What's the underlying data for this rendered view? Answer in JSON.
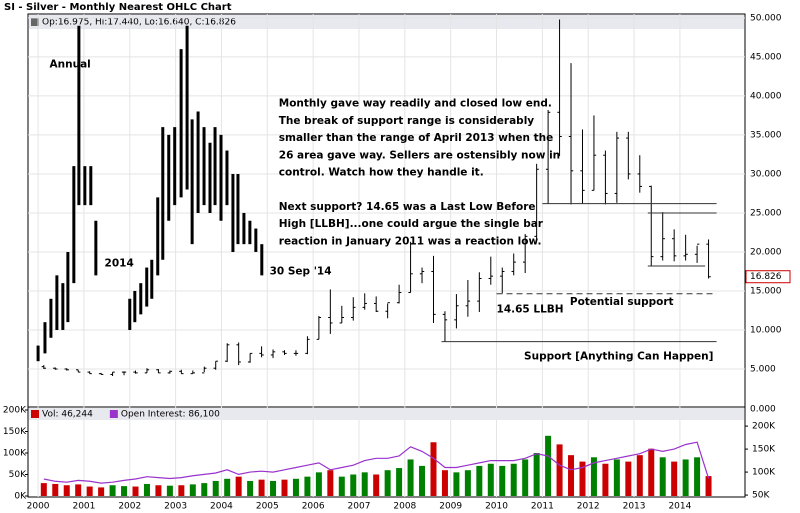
{
  "chart_data": [
    {
      "type": "ohlc",
      "title": "SI - Silver - Monthly Nearest OHLC Chart",
      "legend_text": "Op:16.975, Hi:17.440, Lo:16.640, C:16.826",
      "x": [
        2000.125,
        2000.375,
        2000.625,
        2000.875,
        2001.125,
        2001.375,
        2001.625,
        2001.875,
        2002.125,
        2002.375,
        2002.625,
        2002.875,
        2003.125,
        2003.375,
        2003.625,
        2003.875,
        2004.125,
        2004.375,
        2004.625,
        2004.875,
        2005.125,
        2005.375,
        2005.625,
        2005.875,
        2006.125,
        2006.375,
        2006.625,
        2006.875,
        2007.125,
        2007.375,
        2007.625,
        2007.875,
        2008.125,
        2008.375,
        2008.625,
        2008.875,
        2009.125,
        2009.375,
        2009.625,
        2009.875,
        2010.125,
        2010.375,
        2010.625,
        2010.875,
        2011.125,
        2011.375,
        2011.625,
        2011.875,
        2012.125,
        2012.375,
        2012.625,
        2012.875,
        2013.125,
        2013.375,
        2013.625,
        2013.875,
        2014.125,
        2014.375,
        2014.625
      ],
      "ohlc": {
        "open": [
          5.3,
          5.1,
          5.0,
          4.9,
          4.6,
          4.4,
          4.3,
          4.6,
          4.6,
          4.5,
          4.9,
          4.5,
          4.7,
          4.4,
          4.5,
          5.1,
          6.0,
          8.1,
          5.9,
          7.0,
          6.8,
          7.2,
          7.0,
          7.0,
          8.8,
          11.6,
          10.9,
          11.6,
          12.9,
          13.4,
          12.4,
          13.5,
          14.8,
          17.2,
          17.5,
          12.0,
          11.3,
          13.1,
          13.7,
          16.6,
          16.9,
          17.5,
          18.7,
          22.0,
          30.6,
          37.9,
          34.8,
          30.4,
          27.9,
          32.4,
          27.5,
          34.6,
          30.0,
          28.4,
          19.4,
          21.7,
          19.5,
          19.7,
          21.0
        ],
        "high": [
          5.5,
          5.2,
          5.1,
          4.9,
          4.7,
          4.5,
          4.6,
          4.7,
          4.8,
          5.1,
          5.0,
          4.8,
          4.9,
          4.8,
          5.3,
          6.0,
          8.3,
          8.4,
          7.0,
          7.9,
          7.5,
          7.4,
          7.4,
          9.2,
          11.8,
          15.2,
          13.1,
          14.2,
          14.7,
          14.3,
          13.4,
          15.8,
          21.3,
          18.0,
          19.5,
          12.4,
          14.6,
          16.4,
          17.4,
          19.4,
          18.0,
          19.8,
          22.3,
          31.3,
          38.2,
          49.8,
          44.2,
          35.7,
          37.5,
          33.0,
          35.4,
          35.4,
          32.4,
          28.5,
          25.1,
          22.9,
          22.2,
          20.8,
          21.6
        ],
        "low": [
          5.0,
          4.9,
          4.8,
          4.6,
          4.4,
          4.3,
          4.1,
          4.2,
          4.4,
          4.5,
          4.5,
          4.4,
          4.4,
          4.4,
          4.6,
          4.9,
          5.9,
          5.5,
          5.8,
          6.5,
          6.4,
          6.8,
          6.7,
          6.9,
          8.8,
          9.5,
          10.9,
          11.2,
          12.6,
          12.3,
          11.5,
          13.4,
          14.8,
          16.0,
          10.9,
          8.5,
          10.2,
          11.7,
          12.3,
          15.8,
          14.7,
          17.0,
          17.3,
          21.6,
          26.2,
          32.3,
          26.1,
          26.2,
          27.9,
          26.1,
          26.3,
          29.3,
          27.6,
          18.2,
          18.9,
          18.8,
          18.9,
          18.6,
          16.6
        ],
        "close": [
          5.1,
          5.0,
          4.9,
          4.6,
          4.4,
          4.3,
          4.6,
          4.6,
          4.5,
          4.9,
          4.5,
          4.7,
          4.4,
          4.5,
          5.1,
          6.0,
          8.1,
          5.9,
          7.0,
          6.8,
          7.2,
          7.0,
          7.0,
          8.8,
          11.6,
          10.9,
          11.6,
          12.9,
          13.4,
          12.4,
          13.5,
          14.8,
          17.2,
          17.5,
          12.0,
          11.3,
          13.1,
          13.7,
          16.6,
          16.9,
          17.5,
          18.7,
          22.0,
          30.6,
          37.9,
          34.8,
          30.4,
          27.9,
          32.4,
          27.5,
          34.6,
          30.0,
          28.4,
          19.4,
          21.7,
          19.5,
          19.7,
          21.0,
          16.826
        ]
      },
      "overlay_bars": {
        "x": [
          2000.0,
          2000.15,
          2000.28,
          2000.41,
          2000.54,
          2000.65,
          2000.78,
          2000.89,
          2001.02,
          2001.15,
          2001.26,
          2002.0,
          2002.11,
          2002.24,
          2002.37,
          2002.48,
          2002.61,
          2002.72,
          2002.85,
          2002.98,
          2003.12,
          2003.25,
          2003.36,
          2003.49,
          2003.62,
          2003.75,
          2003.86,
          2003.99,
          2004.12,
          2004.25,
          2004.36,
          2004.49,
          2004.62,
          2004.75,
          2004.88
        ],
        "high": [
          8,
          11,
          14,
          17,
          16,
          20,
          31,
          49,
          31,
          31,
          24,
          14,
          15,
          16,
          18,
          19,
          27,
          36,
          35,
          36,
          46,
          49,
          37,
          38,
          36,
          34,
          36,
          35,
          33,
          30,
          30,
          25,
          24,
          23,
          21
        ],
        "low": [
          6,
          7,
          9,
          10,
          10,
          11,
          16,
          26,
          26,
          26,
          17,
          10,
          11,
          12,
          13,
          14,
          17,
          19,
          24,
          26,
          27,
          28,
          21,
          25,
          26,
          25,
          26,
          24,
          26,
          20,
          21,
          21,
          21,
          20,
          17
        ]
      },
      "lines": [
        {
          "y": 26.2,
          "x": [
            2011.0,
            2014.8
          ],
          "dashed": false
        },
        {
          "y": 25,
          "x": [
            2013.3,
            2014.8
          ],
          "dashed": false
        },
        {
          "y": 18.2,
          "x": [
            2013.3,
            2014.55
          ],
          "dashed": false
        },
        {
          "y": 14.65,
          "x": [
            2010.0,
            2014.8
          ],
          "dashed": true
        },
        {
          "y": 8.5,
          "x": [
            2008.8,
            2014.8
          ],
          "dashed": false
        }
      ],
      "annotations": [
        {
          "text": "Annual",
          "x": 2000.25,
          "y": 44
        },
        {
          "text": "2014",
          "x": 2001.45,
          "y": 18.5
        },
        {
          "text": "30 Sep '14",
          "x": 2005.05,
          "y": 17.5
        },
        {
          "text": "14.65 LLBH",
          "x": 2010.0,
          "y": 12.6
        },
        {
          "text": "Potential support",
          "x": 2011.6,
          "y": 13.6
        },
        {
          "text": "Support  [Anything Can Happen]",
          "x": 2010.6,
          "y": 6.6
        }
      ],
      "note": {
        "x": 2005.25,
        "y": 39,
        "lines": [
          "Monthly gave way readily and closed low end.",
          "The break of support range is considerably",
          "smaller than the range of April 2013 when the",
          "26 area gave way.  Sellers are ostensibly now in",
          "control.  Watch how they handle it.",
          "",
          "Next support?  14.65 was a Last Low Before",
          "High [LLBH]...one could argue the single bar",
          "reaction in January 2011 was a reaction low."
        ]
      },
      "xlim": [
        1999.78,
        2015.42
      ],
      "xticks": [
        2000,
        2001,
        2002,
        2003,
        2004,
        2005,
        2006,
        2007,
        2008,
        2009,
        2010,
        2011,
        2012,
        2013,
        2014
      ],
      "ylim": [
        0,
        50.5
      ],
      "yticks": [
        {
          "value": 5,
          "label": "5.000"
        },
        {
          "value": 10,
          "label": "10.000"
        },
        {
          "value": 15,
          "label": "15.000"
        },
        {
          "value": 20,
          "label": "20.000"
        },
        {
          "value": 25,
          "label": "25.000"
        },
        {
          "value": 30,
          "label": "30.000"
        },
        {
          "value": 35,
          "label": "35.000"
        },
        {
          "value": 40,
          "label": "40.000"
        },
        {
          "value": 45,
          "label": "45.000"
        },
        {
          "value": 50,
          "label": "50.000"
        }
      ],
      "grid": true,
      "color": "#000000",
      "tag_color": "#cc0000"
    },
    {
      "type": "volume",
      "x": [
        2000.125,
        2000.375,
        2000.625,
        2000.875,
        2001.125,
        2001.375,
        2001.625,
        2001.875,
        2002.125,
        2002.375,
        2002.625,
        2002.875,
        2003.125,
        2003.375,
        2003.625,
        2003.875,
        2004.125,
        2004.375,
        2004.625,
        2004.875,
        2005.125,
        2005.375,
        2005.625,
        2005.875,
        2006.125,
        2006.375,
        2006.625,
        2006.875,
        2007.125,
        2007.375,
        2007.625,
        2007.875,
        2008.125,
        2008.375,
        2008.625,
        2008.875,
        2009.125,
        2009.375,
        2009.625,
        2009.875,
        2010.125,
        2010.375,
        2010.625,
        2010.875,
        2011.125,
        2011.375,
        2011.625,
        2011.875,
        2012.125,
        2012.375,
        2012.625,
        2012.875,
        2013.125,
        2013.375,
        2013.625,
        2013.875,
        2014.125,
        2014.375,
        2014.625
      ],
      "series": [
        {
          "name": "Vol: 46,244",
          "color": "#cc0000",
          "up_color": "#008000",
          "values": [
            30000,
            28000,
            25000,
            27000,
            22000,
            20000,
            25000,
            23000,
            22000,
            28000,
            25000,
            24000,
            25000,
            27000,
            30000,
            35000,
            40000,
            45000,
            35000,
            38000,
            35000,
            38000,
            40000,
            45000,
            55000,
            60000,
            45000,
            50000,
            55000,
            50000,
            60000,
            65000,
            85000,
            70000,
            125000,
            60000,
            55000,
            60000,
            70000,
            75000,
            70000,
            75000,
            85000,
            100000,
            140000,
            120000,
            95000,
            80000,
            90000,
            75000,
            85000,
            80000,
            95000,
            110000,
            90000,
            80000,
            85000,
            90000,
            46244
          ]
        },
        {
          "name": "Open Interest: 86,100",
          "color": "#9933cc",
          "axis": "y2",
          "values": [
            85000,
            80000,
            78000,
            82000,
            80000,
            76000,
            78000,
            82000,
            85000,
            90000,
            88000,
            86000,
            88000,
            92000,
            95000,
            98000,
            105000,
            95000,
            100000,
            102000,
            100000,
            105000,
            110000,
            115000,
            120000,
            105000,
            110000,
            115000,
            125000,
            130000,
            130000,
            135000,
            155000,
            145000,
            130000,
            110000,
            110000,
            115000,
            120000,
            125000,
            125000,
            125000,
            130000,
            140000,
            135000,
            115000,
            105000,
            110000,
            120000,
            125000,
            130000,
            135000,
            140000,
            150000,
            145000,
            150000,
            160000,
            165000,
            86100
          ]
        }
      ],
      "ylim": [
        0,
        200000
      ],
      "yticks": [
        {
          "value": 0,
          "label": "0K"
        },
        {
          "value": 50000,
          "label": "50K"
        },
        {
          "value": 100000,
          "label": "100K"
        },
        {
          "value": 150000,
          "label": "150K"
        },
        {
          "value": 200000,
          "label": "200K"
        }
      ],
      "y2lim": [
        48000,
        235000
      ],
      "y2ticks": [
        {
          "value": 50000,
          "label": "50K"
        },
        {
          "value": 100000,
          "label": "100K"
        },
        {
          "value": 150000,
          "label": "150K"
        },
        {
          "value": 200000,
          "label": "200K"
        }
      ],
      "y2_top_label": {
        "value": 0,
        "label": "0.000"
      }
    }
  ]
}
